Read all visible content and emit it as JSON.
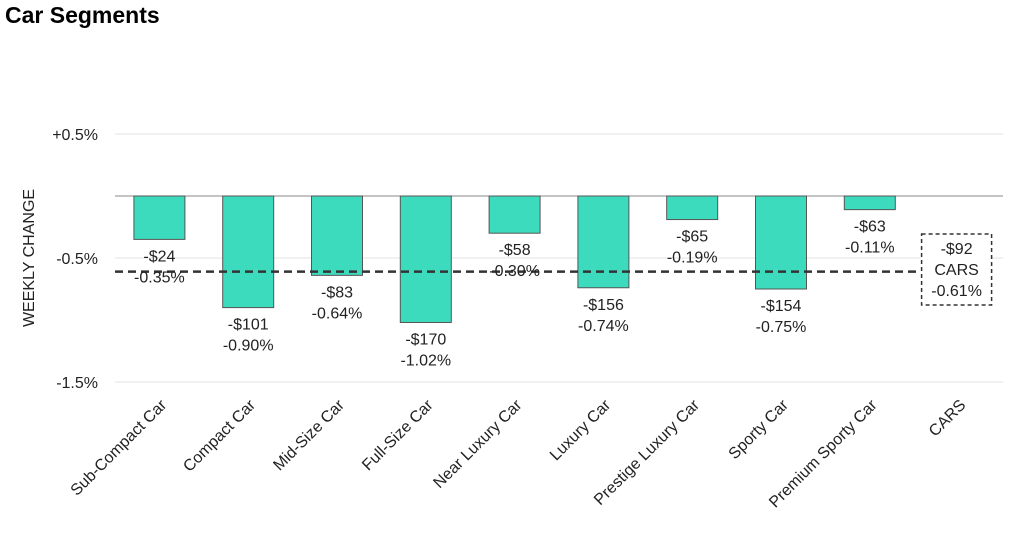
{
  "title": "Car Segments",
  "chart_data": {
    "type": "bar",
    "title": "Car Segments",
    "ylabel": "WEEKLY CHANGE",
    "xlabel": "",
    "ylim": [
      -1.5,
      0.5
    ],
    "yticks": [
      0.5,
      -0.5,
      -1.5
    ],
    "ytick_labels": [
      "+0.5%",
      "-0.5%",
      "-1.5%"
    ],
    "grid": true,
    "bar_color": "#3ddbbd",
    "categories": [
      "Sub-Compact Car",
      "Compact Car",
      "Mid-Size Car",
      "Full-Size Car",
      "Near Luxury Car",
      "Luxury Car",
      "Prestige Luxury Car",
      "Sporty Car",
      "Premium Sporty Car",
      "CARS"
    ],
    "values": [
      -0.35,
      -0.9,
      -0.64,
      -1.02,
      -0.3,
      -0.74,
      -0.19,
      -0.75,
      -0.11,
      null
    ],
    "dollar_labels": [
      "-$24",
      "-$101",
      "-$83",
      "-$170",
      "-$58",
      "-$156",
      "-$65",
      "-$154",
      "-$63",
      "-$92"
    ],
    "percent_labels": [
      "-0.35%",
      "-0.90%",
      "-0.64%",
      "-1.02%",
      "-0.30%",
      "-0.74%",
      "-0.19%",
      "-0.75%",
      "-0.11%",
      "-0.61%"
    ],
    "reference_line": {
      "value": -0.61,
      "label_name": "CARS",
      "dollar": "-$92",
      "percent": "-0.61%",
      "style": "dashed"
    }
  }
}
